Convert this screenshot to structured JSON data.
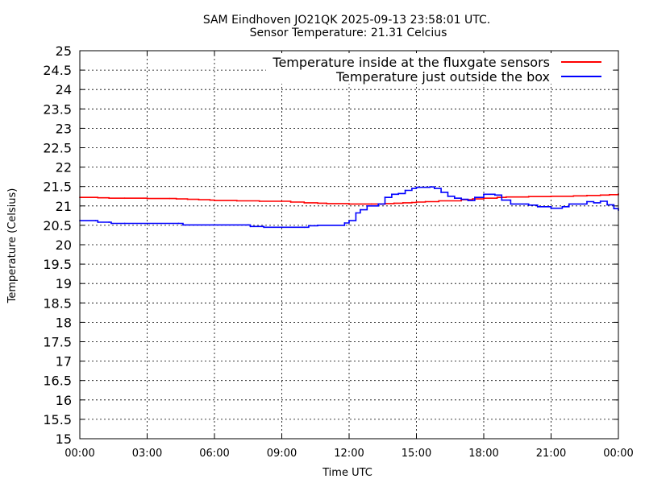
{
  "chart_data": {
    "type": "line",
    "title": "SAM Eindhoven JO21QK 2025-09-13 23:58:01 UTC.",
    "subtitle": "Sensor Temperature: 21.31 Celcius",
    "xlabel": "Time UTC",
    "ylabel": "Temperature (Celsius)",
    "x_unit": "hours UTC",
    "xlim": [
      0,
      24
    ],
    "ylim": [
      15,
      25
    ],
    "x_ticks": [
      {
        "value": 0,
        "label": "00:00"
      },
      {
        "value": 3,
        "label": "03:00"
      },
      {
        "value": 6,
        "label": "06:00"
      },
      {
        "value": 9,
        "label": "09:00"
      },
      {
        "value": 12,
        "label": "12:00"
      },
      {
        "value": 15,
        "label": "15:00"
      },
      {
        "value": 18,
        "label": "18:00"
      },
      {
        "value": 21,
        "label": "21:00"
      },
      {
        "value": 24,
        "label": "00:00"
      }
    ],
    "y_ticks": [
      15,
      15.5,
      16,
      16.5,
      17,
      17.5,
      18,
      18.5,
      19,
      19.5,
      20,
      20.5,
      21,
      21.5,
      22,
      22.5,
      23,
      23.5,
      24,
      24.5,
      25
    ],
    "grid": true,
    "legend_position": "top-right",
    "series": [
      {
        "name": "Temperature inside at the fluxgate sensors",
        "color": "#ff0000",
        "x": [
          0,
          0.8,
          1.3,
          2,
          3,
          4,
          4.3,
          4.8,
          5.3,
          5.8,
          6,
          7,
          8,
          9,
          9.4,
          10,
          10.6,
          11,
          12,
          13,
          13.6,
          14,
          14.4,
          14.8,
          15,
          15.4,
          16,
          17,
          17.5,
          18,
          18.6,
          19,
          20,
          21,
          22,
          22.6,
          23.2,
          23.6,
          24
        ],
        "y": [
          21.22,
          21.21,
          21.2,
          21.2,
          21.19,
          21.19,
          21.18,
          21.17,
          21.16,
          21.15,
          21.14,
          21.13,
          21.12,
          21.12,
          21.1,
          21.08,
          21.07,
          21.06,
          21.05,
          21.05,
          21.06,
          21.07,
          21.08,
          21.09,
          21.1,
          21.11,
          21.13,
          21.16,
          21.18,
          21.2,
          21.22,
          21.23,
          21.24,
          21.25,
          21.26,
          21.27,
          21.28,
          21.29,
          21.31
        ]
      },
      {
        "name": "Temperature just outside the box",
        "color": "#0000ff",
        "x": [
          0,
          0.7,
          0.8,
          1.3,
          1.4,
          2,
          4.4,
          4.6,
          7.5,
          7.6,
          8.2,
          10,
          10.2,
          10.6,
          11.8,
          12,
          12.3,
          12.5,
          12.8,
          13.3,
          13.6,
          13.9,
          14.2,
          14.5,
          14.8,
          15,
          15.6,
          15.8,
          16.1,
          16.4,
          16.7,
          17,
          17.3,
          17.6,
          18,
          18.5,
          18.8,
          19.2,
          20,
          20.4,
          21,
          21.5,
          21.8,
          22.6,
          22.9,
          23.2,
          23.5,
          23.8,
          24
        ],
        "y": [
          20.62,
          20.62,
          20.58,
          20.58,
          20.55,
          20.55,
          20.55,
          20.51,
          20.51,
          20.47,
          20.45,
          20.45,
          20.49,
          20.5,
          20.56,
          20.62,
          20.82,
          20.9,
          21.0,
          21.05,
          21.22,
          21.3,
          21.32,
          21.4,
          21.45,
          21.48,
          21.49,
          21.45,
          21.35,
          21.25,
          21.2,
          21.17,
          21.14,
          21.22,
          21.3,
          21.28,
          21.15,
          21.05,
          21.02,
          20.98,
          20.94,
          20.98,
          21.05,
          21.11,
          21.08,
          21.12,
          21.03,
          20.93,
          20.89
        ]
      }
    ]
  }
}
